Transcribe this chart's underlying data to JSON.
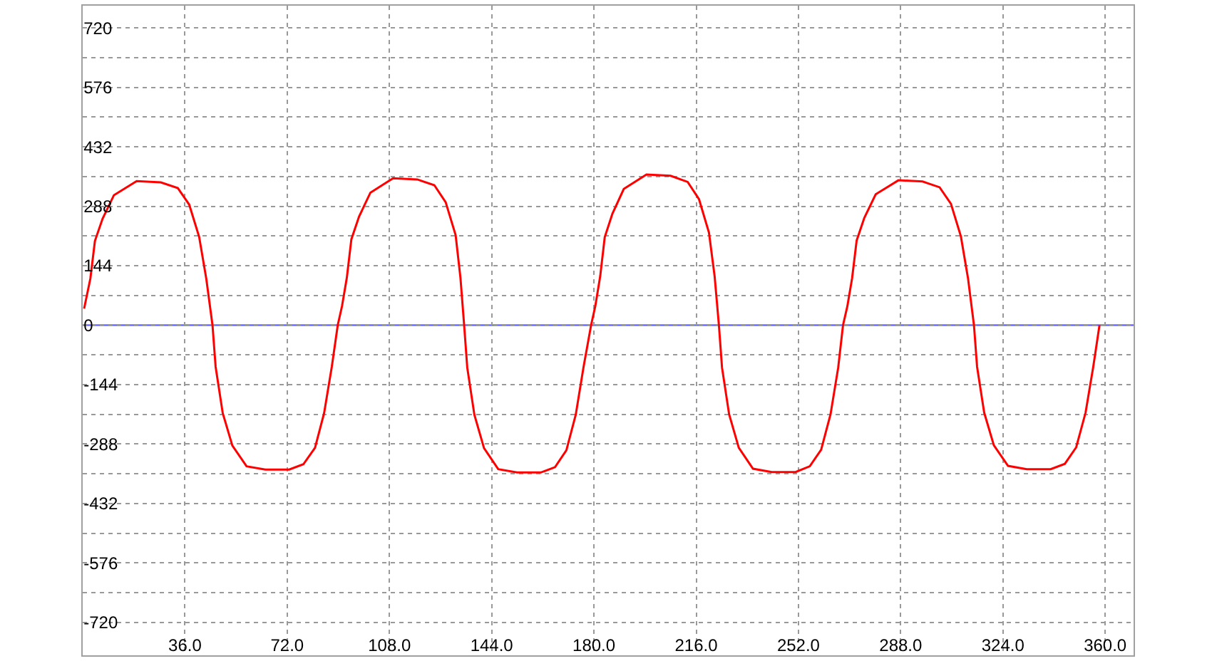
{
  "chart_data": {
    "type": "line",
    "x": [
      0.5,
      2.7,
      4.3,
      7,
      11,
      19,
      27.5,
      33.5,
      37.5,
      41,
      43.5,
      45.7,
      46.8,
      49.3,
      52.7,
      57.7,
      64.3,
      72.7,
      77.7,
      81.8,
      85,
      87.7,
      89.8,
      91.3,
      93,
      94.6,
      97.3,
      101.3,
      109.3,
      117.8,
      123.8,
      127.8,
      131.3,
      133,
      134.3,
      135.4,
      137.9,
      141.3,
      146.3,
      152.9,
      161.3,
      166.3,
      170.3,
      173.6,
      176.3,
      179,
      180.5,
      182.2,
      183.8,
      186.5,
      190.5,
      198.5,
      207,
      213,
      217,
      220.5,
      222.5,
      224,
      225.1,
      227.6,
      231,
      236,
      242.6,
      251,
      256,
      260,
      263.3,
      266,
      267.7,
      269.2,
      270.9,
      272.5,
      275.2,
      279.2,
      287.2,
      295.7,
      301.7,
      305.7,
      309.2,
      311.7,
      313.8,
      314.9,
      317.4,
      320.8,
      325.8,
      332.4,
      340.8,
      345.8,
      349.8,
      353.1,
      355.8,
      358
    ],
    "series": [
      {
        "color": "#ff0000",
        "values": [
          40,
          113,
          204,
          258,
          315,
          349,
          346,
          332,
          292,
          214,
          113,
          0,
          -101,
          -213,
          -292,
          -342,
          -350,
          -350,
          -337,
          -297,
          -213,
          -101,
          0,
          46,
          115,
          208,
          263,
          321,
          356,
          353,
          339,
          298,
          218,
          115,
          0,
          -103,
          -217,
          -298,
          -349,
          -357,
          -357,
          -344,
          -303,
          -217,
          -103,
          0,
          47,
          118,
          213,
          270,
          330,
          365,
          362,
          347,
          305,
          224,
          118,
          0,
          -103,
          -216,
          -297,
          -348,
          -356,
          -356,
          -342,
          -302,
          -216,
          -103,
          0,
          45,
          114,
          205,
          260,
          317,
          351,
          348,
          334,
          294,
          215,
          114,
          0,
          -101,
          -212,
          -291,
          -341,
          -349,
          -349,
          -336,
          -296,
          -212,
          -101,
          0
        ]
      }
    ],
    "xlim": [
      0,
      370
    ],
    "ylim": [
      -800,
      774
    ],
    "xticks": [
      {
        "value": 36,
        "label": "36.0"
      },
      {
        "value": 72,
        "label": "72.0"
      },
      {
        "value": 108,
        "label": "108.0"
      },
      {
        "value": 144,
        "label": "144.0"
      },
      {
        "value": 180,
        "label": "180.0"
      },
      {
        "value": 216,
        "label": "216.0"
      },
      {
        "value": 252,
        "label": "252.0"
      },
      {
        "value": 288,
        "label": "288.0"
      },
      {
        "value": 324,
        "label": "324.0"
      },
      {
        "value": 360,
        "label": "360.0"
      }
    ],
    "yticks": [
      -720,
      {
        "value": -648,
        "label": null
      },
      -576,
      {
        "value": -504,
        "label": null
      },
      -432,
      {
        "value": -360,
        "label": null
      },
      -288,
      {
        "value": -216,
        "label": null
      },
      -144,
      {
        "value": -72,
        "label": null
      },
      0,
      {
        "value": 72,
        "label": null
      },
      144,
      {
        "value": 216,
        "label": null
      },
      288,
      {
        "value": 360,
        "label": null
      },
      432,
      {
        "value": 504,
        "label": null
      },
      576,
      {
        "value": 648,
        "label": null
      },
      720
    ],
    "grid": true,
    "marker": "none",
    "line_style": "solid",
    "legend": false,
    "ref_lines": [
      {
        "axis": "y",
        "value": 0,
        "color": "#6b6bff"
      }
    ]
  }
}
